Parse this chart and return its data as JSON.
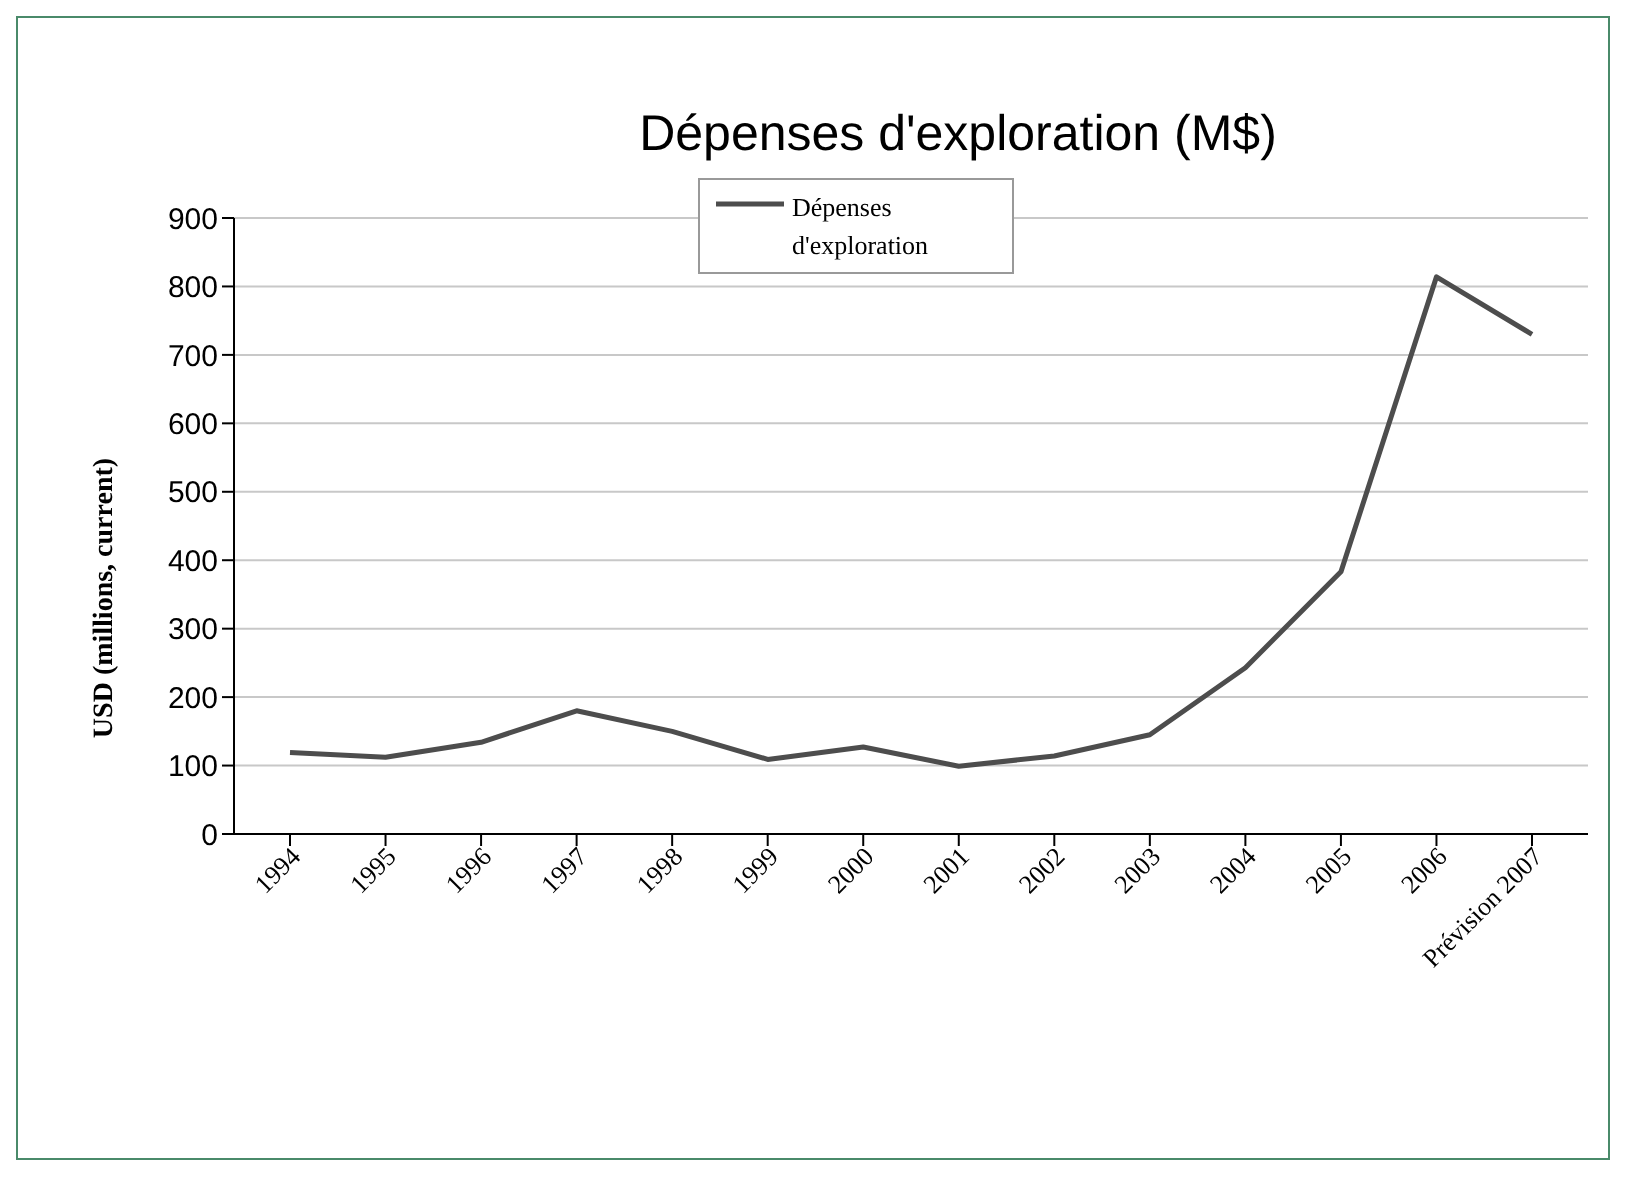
{
  "chart_data": {
    "type": "line",
    "title": "Dépenses d'exploration (M$)",
    "ylabel": "USD (millions, current)",
    "categories": [
      "1994",
      "1995",
      "1996",
      "1997",
      "1998",
      "1999",
      "2000",
      "2001",
      "2002",
      "2003",
      "2004",
      "2005",
      "2006",
      "Prévision 2007"
    ],
    "series": [
      {
        "name": "Dépenses d'exploration",
        "color": "#4d4d4d",
        "values": [
          119,
          112,
          134,
          180,
          150,
          109,
          127,
          99,
          114,
          145,
          243,
          383,
          814,
          730
        ]
      }
    ],
    "ylim": [
      0,
      900
    ],
    "yticks": [
      0,
      100,
      200,
      300,
      400,
      500,
      600,
      700,
      800,
      900
    ],
    "grid": "y",
    "legend": "top",
    "marker": "none",
    "line_style": "solid"
  }
}
